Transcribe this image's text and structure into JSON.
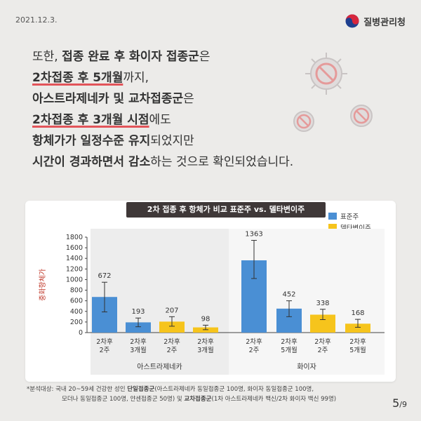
{
  "date": "2021.12.3.",
  "agency": "질병관리청",
  "headline": [
    [
      {
        "t": "또한, ",
        "s": ""
      },
      {
        "t": "접종 완료 후 화이자 접종군",
        "s": "b"
      },
      {
        "t": "은",
        "s": ""
      }
    ],
    [
      {
        "t": "2차접종 후 5개월",
        "s": "u"
      },
      {
        "t": "까지,",
        "s": ""
      }
    ],
    [
      {
        "t": "아스트라제네카 및 교차접종군",
        "s": "b"
      },
      {
        "t": "은",
        "s": ""
      }
    ],
    [
      {
        "t": "2차접종 후 3개월 시점",
        "s": "u"
      },
      {
        "t": "에도",
        "s": ""
      }
    ],
    [
      {
        "t": "항체가가 일정수준 유지",
        "s": "b"
      },
      {
        "t": "되었지만",
        "s": ""
      }
    ],
    [
      {
        "t": "시간이 경과하면서 감소",
        "s": "b"
      },
      {
        "t": "하는 것으로 확인되었습니다.",
        "s": ""
      }
    ]
  ],
  "chart_data": {
    "type": "bar",
    "title": "2차 접종 후 항체가 비교 표준주 vs. 델타변이주",
    "ylabel": "중화항체가",
    "ylim": [
      0,
      1800
    ],
    "yticks": [
      0,
      200,
      400,
      600,
      800,
      1000,
      1200,
      1400,
      1600,
      1800
    ],
    "legend": [
      {
        "name": "표준주",
        "color": "#4a8fd4"
      },
      {
        "name": "델타변이주",
        "color": "#f6c41c"
      }
    ],
    "groups": [
      {
        "name": "아스트라제네카",
        "bars": [
          {
            "label": "2차후\n2주",
            "value": 672,
            "series": "표준주",
            "err": [
              390,
              950
            ]
          },
          {
            "label": "2차후\n3개월",
            "value": 193,
            "series": "표준주",
            "err": [
              110,
              275
            ]
          },
          {
            "label": "2차후\n2주",
            "value": 207,
            "series": "델타변이주",
            "err": [
              120,
              300
            ]
          },
          {
            "label": "2차후\n3개월",
            "value": 98,
            "series": "델타변이주",
            "err": [
              55,
              140
            ]
          }
        ]
      },
      {
        "name": "화이자",
        "bars": [
          {
            "label": "2차후\n2주",
            "value": 1363,
            "series": "표준주",
            "err": [
              1020,
              1740
            ]
          },
          {
            "label": "2차후\n5개월",
            "value": 452,
            "series": "표준주",
            "err": [
              300,
              600
            ]
          },
          {
            "label": "2차후\n2주",
            "value": 338,
            "series": "델타변이주",
            "err": [
              245,
              440
            ]
          },
          {
            "label": "2차후\n5개월",
            "value": 168,
            "series": "델타변이주",
            "err": [
              100,
              250
            ]
          }
        ]
      }
    ]
  },
  "footnote": {
    "line1_prefix": "*분석대상: 국내 20~59세 건강한 성인 ",
    "line1_bold": "단일접종군",
    "line1_rest": "(아스트라제네카 동일접종군 100명, 화이자 동일접종군 100명,",
    "line2_a": "모더나 동일접종군 100명, 얀센접종군 50명) 및 ",
    "line2_bold": "교차접종군",
    "line2_rest": "(1차 아스트라제네카 백신/2차 화이자 백신 99명)"
  },
  "page": {
    "current": "5",
    "total": "/9"
  },
  "colors": {
    "accent_underline": "#e2545a",
    "blue": "#4a8fd4",
    "yellow": "#f6c41c",
    "title_bg": "#3f3838"
  }
}
